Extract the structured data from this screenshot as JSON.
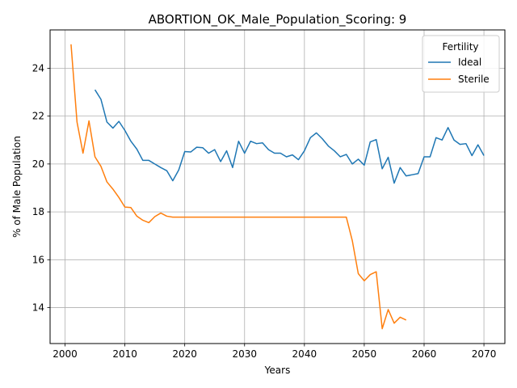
{
  "chart_data": {
    "type": "line",
    "title": "ABORTION_OK_Male_Population_Scoring: 9",
    "xlabel": "Years",
    "ylabel": "% of Male Population",
    "xlim": [
      1997.5,
      2073.5
    ],
    "ylim": [
      12.5,
      25.6
    ],
    "xticks": [
      2000,
      2010,
      2020,
      2030,
      2040,
      2050,
      2060,
      2070
    ],
    "yticks": [
      14,
      16,
      18,
      20,
      22,
      24
    ],
    "grid": true,
    "legend": {
      "title": "Fertility",
      "placement": "upper right"
    },
    "series": [
      {
        "name": "Ideal",
        "color": "#1f77b4",
        "x": [
          2005,
          2006,
          2007,
          2008,
          2009,
          2010,
          2011,
          2012,
          2013,
          2014,
          2015,
          2016,
          2017,
          2018,
          2019,
          2020,
          2021,
          2022,
          2023,
          2024,
          2025,
          2026,
          2027,
          2028,
          2029,
          2030,
          2031,
          2032,
          2033,
          2034,
          2035,
          2036,
          2037,
          2038,
          2039,
          2040,
          2041,
          2042,
          2043,
          2044,
          2045,
          2046,
          2047,
          2048,
          2049,
          2050,
          2051,
          2052,
          2053,
          2054,
          2055,
          2056,
          2057,
          2058,
          2059,
          2060,
          2061,
          2062,
          2063,
          2064,
          2065,
          2066,
          2067,
          2068,
          2069,
          2070
        ],
        "y": [
          23.1,
          22.7,
          21.75,
          21.5,
          21.78,
          21.4,
          20.95,
          20.62,
          20.15,
          20.15,
          20.0,
          19.85,
          19.72,
          19.3,
          19.75,
          20.52,
          20.5,
          20.7,
          20.68,
          20.45,
          20.6,
          20.1,
          20.55,
          19.85,
          20.95,
          20.45,
          20.95,
          20.85,
          20.88,
          20.6,
          20.45,
          20.45,
          20.3,
          20.38,
          20.18,
          20.55,
          21.1,
          21.3,
          21.05,
          20.75,
          20.55,
          20.3,
          20.4,
          20.0,
          20.2,
          19.95,
          20.92,
          21.02,
          19.8,
          20.28,
          19.2,
          19.85,
          19.5,
          19.55,
          19.6,
          20.3,
          20.3,
          21.1,
          21.0,
          21.52,
          21.0,
          20.82,
          20.85,
          20.35,
          20.8,
          20.35
        ]
      },
      {
        "name": "Sterile",
        "color": "#ff7f0e",
        "x": [
          2001,
          2002,
          2003,
          2004,
          2005,
          2006,
          2007,
          2008,
          2009,
          2010,
          2011,
          2012,
          2013,
          2014,
          2015,
          2016,
          2017,
          2018,
          2019,
          2020,
          2021,
          2022,
          2023,
          2024,
          2025,
          2026,
          2027,
          2028,
          2029,
          2030,
          2031,
          2032,
          2033,
          2034,
          2035,
          2036,
          2037,
          2038,
          2039,
          2040,
          2041,
          2042,
          2043,
          2044,
          2045,
          2046,
          2047,
          2048,
          2049,
          2050,
          2051,
          2052,
          2053,
          2054,
          2055,
          2056,
          2057
        ],
        "y": [
          25.0,
          21.75,
          20.45,
          21.8,
          20.3,
          19.9,
          19.25,
          18.95,
          18.6,
          18.2,
          18.18,
          17.82,
          17.65,
          17.55,
          17.8,
          17.95,
          17.82,
          17.78,
          17.78,
          17.78,
          17.78,
          17.78,
          17.78,
          17.78,
          17.78,
          17.78,
          17.78,
          17.78,
          17.78,
          17.78,
          17.78,
          17.78,
          17.78,
          17.78,
          17.78,
          17.78,
          17.78,
          17.78,
          17.78,
          17.78,
          17.78,
          17.78,
          17.78,
          17.78,
          17.78,
          17.78,
          17.78,
          16.8,
          15.42,
          15.12,
          15.38,
          15.5,
          13.12,
          13.92,
          13.35,
          13.6,
          13.48
        ]
      }
    ]
  }
}
